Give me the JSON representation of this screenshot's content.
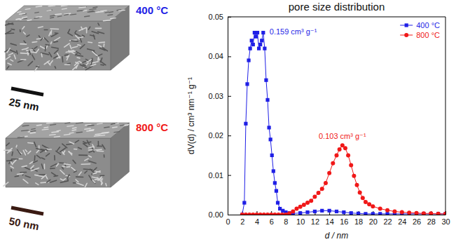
{
  "chart_data": {
    "type": "line",
    "title": "pore size distribution",
    "x_label": "d / nm",
    "y_label": "dV(d) / cm³ nm⁻¹ g⁻¹",
    "xlim": [
      0,
      30
    ],
    "xticks": [
      0,
      2,
      4,
      6,
      8,
      10,
      12,
      14,
      16,
      18,
      20,
      22,
      24,
      26,
      28,
      30
    ],
    "ylim": [
      0,
      0.05
    ],
    "yticks": [
      {
        "value": 0,
        "label": "0.00"
      },
      {
        "value": 0.01,
        "label": "0.01"
      },
      {
        "value": 0.02,
        "label": "0.02"
      },
      {
        "value": 0.03,
        "label": "0.03"
      },
      {
        "value": 0.04,
        "label": "0.04"
      },
      {
        "value": 0.05,
        "label": "0.05"
      }
    ],
    "legend": "top-right",
    "series": [
      {
        "name": "400 °C",
        "color": "#1f1fe6",
        "marker": "square",
        "x": [
          2.0,
          2.3,
          2.5,
          2.7,
          2.9,
          3.1,
          3.3,
          3.5,
          3.7,
          3.9,
          4.1,
          4.3,
          4.5,
          4.7,
          4.9,
          5.1,
          5.3,
          5.5,
          5.7,
          5.9,
          6.1,
          6.3,
          6.5,
          6.7,
          6.9,
          7.2,
          7.6,
          8.0,
          8.5,
          9,
          10,
          11,
          12,
          13,
          14,
          15,
          16,
          17,
          18,
          19,
          20,
          21,
          22,
          23,
          24,
          25,
          26,
          27,
          28,
          29,
          30
        ],
        "values": [
          0,
          0.003,
          0.023,
          0.033,
          0.039,
          0.042,
          0.044,
          0.043,
          0.046,
          0.045,
          0.046,
          0.042,
          0.043,
          0.044,
          0.046,
          0.042,
          0.034,
          0.029,
          0.022,
          0.019,
          0.015,
          0.011,
          0.008,
          0.006,
          0.003,
          0.0015,
          0.001,
          0.0006,
          0.0004,
          0.0003,
          0.0004,
          0.0006,
          0.0008,
          0.001,
          0.001,
          0.0008,
          0.0006,
          0.0004,
          0.0003,
          0.0002,
          0.0002,
          0.0002,
          0.0002,
          0.0002,
          0.0002,
          0.0002,
          0.0002,
          0.0002,
          0.0002,
          0.0002,
          0.0002
        ]
      },
      {
        "name": "800 °C",
        "color": "#f01818",
        "marker": "circle",
        "x": [
          2,
          2.5,
          3,
          3.5,
          4,
          4.5,
          5,
          5.5,
          6,
          6.5,
          7,
          7.5,
          8,
          8.5,
          9,
          9.5,
          10,
          10.5,
          11,
          11.5,
          12,
          12.5,
          13,
          13.5,
          14,
          14.5,
          15,
          15.4,
          15.8,
          16.2,
          16.6,
          17,
          17.4,
          17.8,
          18.2,
          18.6,
          19,
          19.5,
          20,
          21,
          22,
          23,
          24,
          25,
          26,
          27,
          28,
          29,
          30
        ],
        "values": [
          0,
          0,
          0,
          0,
          0,
          0,
          0,
          0,
          0,
          0,
          0,
          0,
          0,
          0.0003,
          0.0008,
          0.0015,
          0.002,
          0.0025,
          0.003,
          0.0035,
          0.0045,
          0.0055,
          0.0065,
          0.008,
          0.0105,
          0.013,
          0.015,
          0.0165,
          0.0175,
          0.0168,
          0.015,
          0.0125,
          0.0098,
          0.0075,
          0.0056,
          0.0042,
          0.0032,
          0.0026,
          0.0021,
          0.0015,
          0.0011,
          0.0008,
          0.0006,
          0.0005,
          0.0004,
          0.0003,
          0.0003,
          0.0002,
          0.0002
        ]
      }
    ],
    "annotations": [
      {
        "text": "0.159 cm³ g⁻¹",
        "series": 0
      },
      {
        "text": "0.103 cm³ g⁻¹",
        "series": 1
      }
    ]
  },
  "images": [
    {
      "label": "400 °C",
      "label_color": "#1f1fe6",
      "scale_bar": "25 nm",
      "scale_bar_color": "#111111"
    },
    {
      "label": "800 °C",
      "label_color": "#f01818",
      "scale_bar": "50 nm",
      "scale_bar_color": "#3a1a12"
    }
  ]
}
